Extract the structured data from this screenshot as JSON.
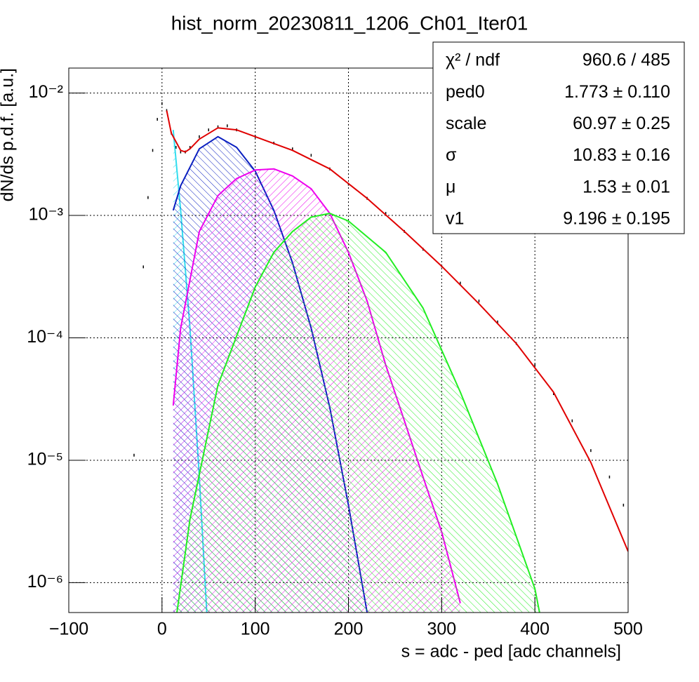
{
  "chart_data": {
    "type": "histogram_fit",
    "title": "hist_norm_20230811_1206_Ch01_Iter01",
    "x_label": "s = adc - ped [adc channels]",
    "y_label": "dN/ds p.d.f. [a.u.]",
    "xlim": [
      -100,
      500
    ],
    "ylim": [
      5.7e-07,
      0.016
    ],
    "log_y": true,
    "grid": true,
    "xticks": [
      {
        "value": -100,
        "label": "−100"
      },
      0,
      100,
      200,
      300,
      400,
      500
    ],
    "yticks": [
      {
        "value": 1e-06,
        "label": "10⁻⁶"
      },
      {
        "value": 1e-05,
        "label": "10⁻⁵"
      },
      {
        "value": 0.0001,
        "label": "10⁻⁴"
      },
      {
        "value": 0.001,
        "label": "10⁻³"
      },
      {
        "value": 0.01,
        "label": "10⁻²"
      }
    ],
    "series": [
      {
        "style": "points",
        "color": "#000000",
        "x": [
          -30,
          -20,
          -15,
          -10,
          -5,
          0,
          5,
          10,
          15,
          20,
          25,
          30,
          40,
          50,
          60,
          70,
          80,
          100,
          120,
          140,
          160,
          180,
          200,
          220,
          240,
          260,
          280,
          300,
          320,
          340,
          360,
          380,
          400,
          420,
          440,
          460,
          480,
          495
        ],
        "values": [
          1.1e-05,
          0.00038,
          0.0014,
          0.0034,
          0.0061,
          0.0082,
          0.0072,
          0.0047,
          0.0036,
          0.0033,
          0.0033,
          0.0036,
          0.0044,
          0.005,
          0.0053,
          0.0054,
          0.005,
          0.0044,
          0.0039,
          0.0035,
          0.0031,
          0.0024,
          0.0018,
          0.00138,
          0.00104,
          0.00074,
          0.00053,
          0.000385,
          0.00028,
          0.0002,
          0.000135,
          9e-05,
          6e-05,
          3.5e-05,
          2.1e-05,
          1.2e-05,
          7.3e-06,
          4.3e-06
        ]
      },
      {
        "style": "area",
        "color": "#33ddee",
        "x": [
          12,
          20,
          30,
          40,
          48
        ],
        "values": [
          0.005,
          0.0011,
          0.00012,
          7.3e-06,
          5.7e-07
        ]
      },
      {
        "style": "area",
        "color": "#0a1fc0",
        "x": [
          12,
          20,
          40,
          60,
          80,
          100,
          120,
          140,
          160,
          180,
          200,
          220
        ],
        "values": [
          0.0011,
          0.00175,
          0.0035,
          0.0044,
          0.0036,
          0.0023,
          0.0011,
          0.00041,
          0.00012,
          2.7e-05,
          4.3e-06,
          5.7e-07
        ]
      },
      {
        "style": "area",
        "color": "#ee00ee",
        "x": [
          12,
          20,
          40,
          60,
          80,
          100,
          120,
          140,
          160,
          180,
          200,
          220,
          240,
          260,
          280,
          300,
          320
        ],
        "values": [
          2.8e-05,
          0.00012,
          0.00074,
          0.00145,
          0.002,
          0.00235,
          0.0024,
          0.0021,
          0.00165,
          0.00104,
          0.0005,
          0.0002,
          6e-05,
          2.1e-05,
          7.3e-06,
          2.6e-06,
          6.8e-07
        ]
      },
      {
        "style": "area",
        "color": "#22ee22",
        "x": [
          16,
          30,
          60,
          100,
          120,
          140,
          160,
          180,
          200,
          240,
          280,
          320,
          360,
          400,
          405
        ],
        "values": [
          5.7e-07,
          3.3e-06,
          4.1e-05,
          0.00026,
          0.0005,
          0.00074,
          0.00097,
          0.00104,
          0.0009,
          0.0005,
          0.000175,
          3.6e-05,
          6.4e-06,
          8.9e-07,
          5.7e-07
        ]
      },
      {
        "style": "line",
        "color": "#e00000",
        "x": [
          5,
          10,
          20,
          25,
          30,
          40,
          60,
          80,
          100,
          140,
          180,
          220,
          260,
          300,
          340,
          380,
          420,
          460,
          500
        ],
        "values": [
          0.0072,
          0.0047,
          0.0034,
          0.0033,
          0.0035,
          0.0042,
          0.0052,
          0.005,
          0.0044,
          0.0034,
          0.0024,
          0.00138,
          0.00074,
          0.000385,
          0.00019,
          9e-05,
          3.6e-05,
          9.6e-06,
          1.8e-06
        ]
      }
    ],
    "stats": [
      {
        "label": "χ² / ndf",
        "value": "960.6 / 485"
      },
      {
        "label": "ped0",
        "value": "1.773 ± 0.110"
      },
      {
        "label": "scale",
        "value": "60.97 ± 0.25"
      },
      {
        "label": "σ",
        "value": "10.83 ± 0.16"
      },
      {
        "label": "μ",
        "value": "1.53 ± 0.01"
      },
      {
        "label": "v1",
        "value": "9.196 ± 0.195"
      }
    ]
  }
}
